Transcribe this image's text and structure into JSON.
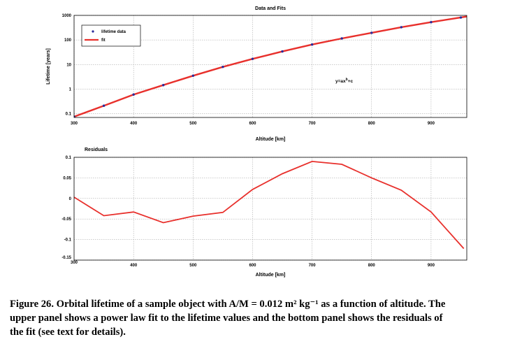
{
  "chart_data": [
    {
      "type": "line",
      "title": "Data and Fits",
      "xlabel": "Altitude [km]",
      "ylabel": "Lifetime [years]",
      "xlim": [
        300,
        960
      ],
      "ylim": [
        0.07,
        1000
      ],
      "yscale": "log",
      "xticks": [
        300,
        400,
        500,
        600,
        700,
        800,
        900
      ],
      "xtick_labels": [
        "300",
        "400",
        "500",
        "600",
        "700",
        "800",
        "900"
      ],
      "yticks": [
        0.1,
        1,
        10,
        100,
        1000
      ],
      "ytick_labels": [
        "0.1",
        "1",
        "10",
        "100",
        "1000"
      ],
      "grid": true,
      "legend": {
        "position": "top-left",
        "entries": [
          "lifetime data",
          "fit"
        ]
      },
      "annotation": {
        "base": "y=ax",
        "sup": "b",
        "tail": "+c"
      },
      "series": [
        {
          "name": "lifetime data",
          "style": "markers",
          "color": "#2a2a9a",
          "x": [
            300,
            350,
            400,
            450,
            500,
            550,
            600,
            650,
            700,
            750,
            800,
            850,
            900,
            950
          ],
          "y": [
            0.075,
            0.21,
            0.6,
            1.45,
            3.5,
            8,
            17,
            34,
            65,
            115,
            195,
            330,
            530,
            820
          ]
        },
        {
          "name": "fit",
          "style": "line",
          "color": "#e8302c",
          "x": [
            300,
            350,
            400,
            450,
            500,
            550,
            600,
            650,
            700,
            750,
            800,
            850,
            900,
            960
          ],
          "y": [
            0.075,
            0.21,
            0.6,
            1.45,
            3.5,
            8,
            17,
            34,
            65,
            115,
            195,
            330,
            530,
            900
          ]
        }
      ]
    },
    {
      "type": "line",
      "title": "Residuals",
      "xlabel": "Altitude [km]",
      "ylabel": "",
      "xlim": [
        300,
        960
      ],
      "ylim": [
        -0.15,
        0.1
      ],
      "xticks": [
        300,
        400,
        500,
        600,
        700,
        800,
        900
      ],
      "xtick_labels": [
        "300",
        "400",
        "500",
        "600",
        "700",
        "800",
        "900"
      ],
      "yticks": [
        0.1,
        0.05,
        0,
        -0.05,
        -0.1,
        -0.15
      ],
      "ytick_labels": [
        "0.1",
        "0.05",
        "0",
        "-0.05",
        "-0.1",
        "-0.15"
      ],
      "grid": true,
      "series": [
        {
          "color": "#e8302c",
          "x": [
            300,
            350,
            400,
            450,
            500,
            550,
            600,
            650,
            700,
            750,
            800,
            850,
            900,
            955
          ],
          "y": [
            0.003,
            -0.042,
            -0.033,
            -0.059,
            -0.043,
            -0.034,
            0.022,
            0.06,
            0.09,
            0.083,
            0.05,
            0.02,
            -0.033,
            -0.122
          ]
        }
      ]
    }
  ],
  "caption": {
    "lines": [
      "Figure 26. Orbital lifetime of a sample object with A/M = 0.012 m² kg⁻¹ as a function of altitude. The",
      "upper panel shows a power law fit to the lifetime values and the bottom panel shows the residuals of",
      "the fit (see text for details)."
    ]
  }
}
